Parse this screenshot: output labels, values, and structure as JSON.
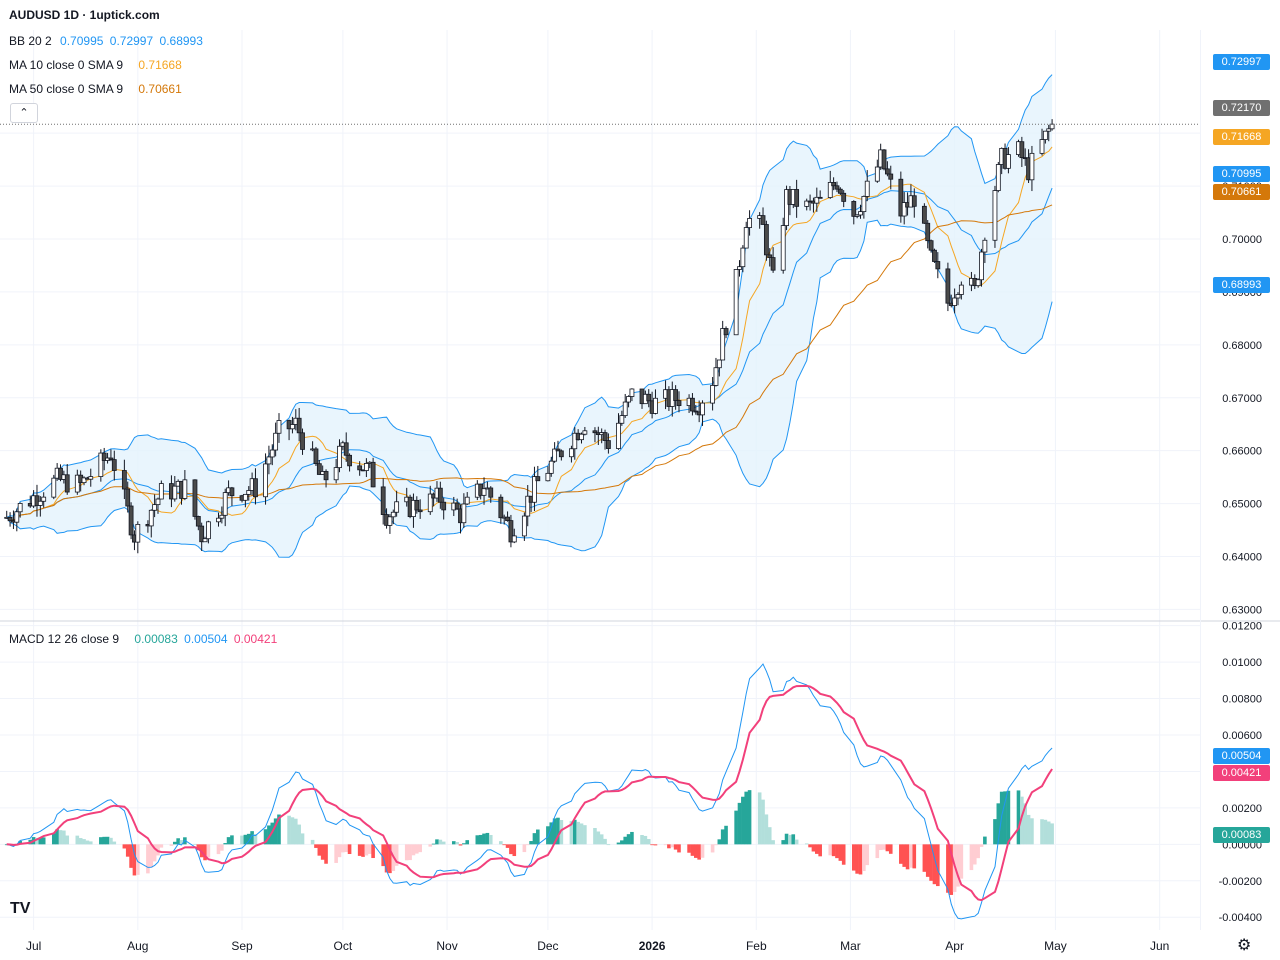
{
  "title": "AUDUSD 1D · 1uptick.com",
  "legend": {
    "bb": {
      "label": "BB 20 2",
      "values": [
        "0.70995",
        "0.72997",
        "0.68993"
      ]
    },
    "ma10": {
      "label": "MA 10 close 0 SMA 9",
      "value": "0.71668"
    },
    "ma50": {
      "label": "MA 50 close 0 SMA 9",
      "value": "0.70661"
    },
    "macd": {
      "label": "MACD 12 26 close 9",
      "values": [
        "0.00083",
        "0.00504",
        "0.00421"
      ]
    }
  },
  "price_tags": {
    "bb_upper": "0.72997",
    "last": "0.72170",
    "ma10": "0.71668",
    "bb_mid": "0.70995",
    "ma50": "0.70661",
    "bb_lower": "0.68993"
  },
  "macd_tags": {
    "macd": "0.00504",
    "signal": "0.00421",
    "hist": "0.00083"
  },
  "colors": {
    "up": "#ffffff",
    "down": "#4a4a4a",
    "bb": "#2196f3",
    "bb_fill": "#e3f2fd",
    "ma10": "#f5a623",
    "ma50": "#d4780a",
    "macd": "#2196f3",
    "signal": "#f2407b",
    "hist_up_strong": "#26a69a",
    "hist_up_weak": "#b2dfdb",
    "hist_down_strong": "#ff5252",
    "hist_down_weak": "#ffcdd2",
    "last": "#707070"
  },
  "chart_data": [
    {
      "type": "candlestick",
      "title": "AUDUSD 1D",
      "x_ticks": [
        "Jul",
        "Aug",
        "Sep",
        "Oct",
        "Nov",
        "Dec",
        "2026",
        "Feb",
        "Mar",
        "Apr",
        "May",
        "Jun"
      ],
      "x_tick_dates": [
        "2025-07-01",
        "2025-08-01",
        "2025-09-01",
        "2025-10-01",
        "2025-11-01",
        "2025-12-01",
        "2026-01-01",
        "2026-02-01",
        "2026-03-01",
        "2026-04-01",
        "2026-05-01",
        "2026-06-01"
      ],
      "y_ticks": [
        "0.72000",
        "0.71000",
        "0.70000",
        "0.69000",
        "0.68000",
        "0.67000",
        "0.66000",
        "0.65000",
        "0.64000",
        "0.63000"
      ],
      "ylim": [
        0.628,
        0.7395
      ],
      "xlim": [
        "2025-06-21",
        "2026-06-13"
      ],
      "anchors": [
        [
          "2025-06-21",
          0.6465
        ],
        [
          "2025-07-08",
          0.6545
        ],
        [
          "2025-07-15",
          0.6535
        ],
        [
          "2025-07-24",
          0.6595
        ],
        [
          "2025-07-31",
          0.644
        ],
        [
          "2025-08-08",
          0.652
        ],
        [
          "2025-08-15",
          0.653
        ],
        [
          "2025-08-20",
          0.644
        ],
        [
          "2025-08-28",
          0.652
        ],
        [
          "2025-09-05",
          0.653
        ],
        [
          "2025-09-12",
          0.6635
        ],
        [
          "2025-09-17",
          0.665
        ],
        [
          "2025-09-25",
          0.654
        ],
        [
          "2025-10-01",
          0.66
        ],
        [
          "2025-10-09",
          0.656
        ],
        [
          "2025-10-14",
          0.648
        ],
        [
          "2025-10-24",
          0.65
        ],
        [
          "2025-10-30",
          0.651
        ],
        [
          "2025-11-05",
          0.648
        ],
        [
          "2025-11-12",
          0.6535
        ],
        [
          "2025-11-20",
          0.645
        ],
        [
          "2025-11-28",
          0.654
        ],
        [
          "2025-12-05",
          0.66
        ],
        [
          "2025-12-12",
          0.6655
        ],
        [
          "2025-12-19",
          0.6615
        ],
        [
          "2025-12-26",
          0.6705
        ],
        [
          "2026-01-02",
          0.669
        ],
        [
          "2026-01-09",
          0.67
        ],
        [
          "2026-01-15",
          0.669
        ],
        [
          "2026-01-19",
          0.6735
        ],
        [
          "2026-01-26",
          0.692
        ],
        [
          "2026-01-29",
          0.704
        ],
        [
          "2026-02-03",
          0.702
        ],
        [
          "2026-02-06",
          0.692
        ],
        [
          "2026-02-10",
          0.708
        ],
        [
          "2026-02-16",
          0.706
        ],
        [
          "2026-02-20",
          0.707
        ],
        [
          "2026-02-25",
          0.711
        ],
        [
          "2026-03-02",
          0.705
        ],
        [
          "2026-03-05",
          0.708
        ],
        [
          "2026-03-10",
          0.715
        ],
        [
          "2026-03-16",
          0.705
        ],
        [
          "2026-03-20",
          0.708
        ],
        [
          "2026-03-25",
          0.696
        ],
        [
          "2026-03-30",
          0.688
        ],
        [
          "2026-04-03",
          0.693
        ],
        [
          "2026-04-07",
          0.69
        ],
        [
          "2026-04-10",
          0.702
        ],
        [
          "2026-04-15",
          0.715
        ],
        [
          "2026-04-20",
          0.7165
        ],
        [
          "2026-04-23",
          0.713
        ],
        [
          "2026-04-27",
          0.718
        ],
        [
          "2026-04-30",
          0.7217
        ]
      ],
      "series": [
        {
          "name": "BB 20 2",
          "last": [
            0.70995,
            0.72997,
            0.68993
          ]
        },
        {
          "name": "MA 10 close 0 SMA 9",
          "last": 0.71668
        },
        {
          "name": "MA 50 close 0 SMA 9",
          "last": 0.70661
        }
      ],
      "last_price": 0.7217
    },
    {
      "type": "line",
      "title": "MACD 12 26 close 9",
      "y_ticks": [
        "0.01200",
        "0.01000",
        "0.00800",
        "0.00600",
        "0.00400",
        "0.00200",
        "0.00000",
        "-0.00200",
        "-0.00400"
      ],
      "ylim": [
        -0.0047,
        0.0122
      ],
      "series": [
        {
          "name": "MACD",
          "last": 0.00504
        },
        {
          "name": "Signal",
          "last": 0.00421
        },
        {
          "name": "Histogram",
          "last": 0.00083
        }
      ]
    }
  ]
}
